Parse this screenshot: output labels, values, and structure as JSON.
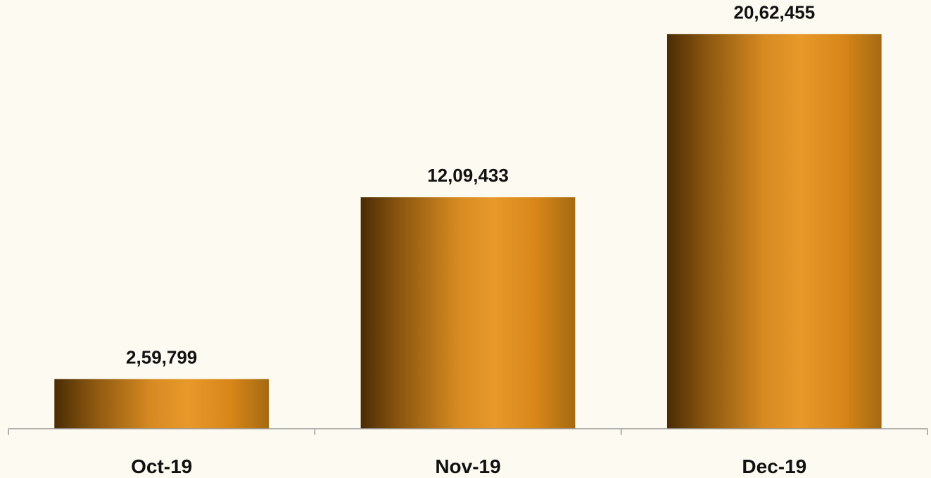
{
  "chart_data": {
    "type": "bar",
    "categories": [
      "Oct-19",
      "Nov-19",
      "Dec-19"
    ],
    "values": [
      259799,
      1209433,
      2062455
    ],
    "data_labels": [
      "2,59,799",
      "12,09,433",
      "20,62,455"
    ],
    "title": "",
    "xlabel": "",
    "ylabel": "",
    "ylim": [
      0,
      2240000
    ],
    "grid": false,
    "legend": "none",
    "bar_color": "#e39524",
    "bar_shadow_color": "#4a2c05",
    "axis_color": "#9a9a9a"
  }
}
